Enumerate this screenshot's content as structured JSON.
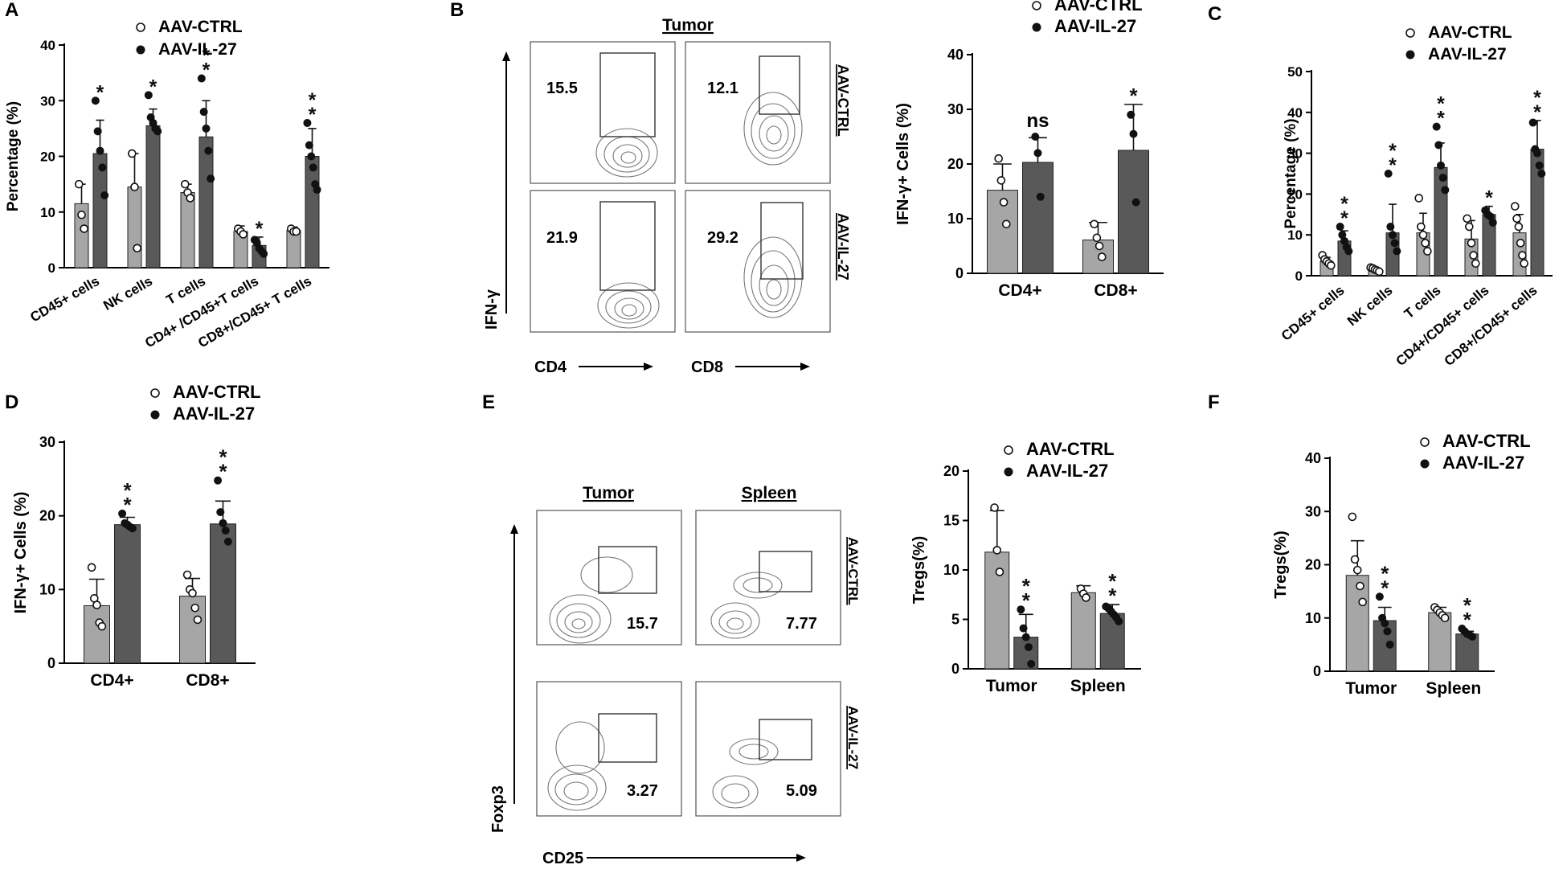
{
  "colors": {
    "ctrl_fill": "#a6a6a6",
    "il27_fill": "#595959",
    "point": "#111111",
    "axis": "#000000",
    "gate": "#333333",
    "contour": "#777777",
    "star": "#111111"
  },
  "chart_data": [
    {
      "id": "A",
      "panel_label": "A",
      "type": "bar",
      "ylabel": "Percentage (%)",
      "ylim": [
        0,
        40
      ],
      "yticks": [
        0,
        10,
        20,
        30,
        40
      ],
      "categories": [
        "CD45+ cells",
        "NK cells",
        "T cells",
        "CD4+ /CD45+T cells",
        "CD8+/CD45+ T cells"
      ],
      "legend": {
        "placement": "top",
        "entries": [
          "AAV-CTRL",
          "AAV-IL-27"
        ]
      },
      "series": [
        {
          "name": "AAV-CTRL",
          "values": [
            11.5,
            14.5,
            13.5,
            6.5,
            6.7
          ],
          "errors": [
            3.5,
            6,
            1.5,
            1,
            0.6
          ],
          "points": [
            [
              15,
              9.5,
              7
            ],
            [
              20.5,
              14.5,
              3.5
            ],
            [
              15,
              13.5,
              12.5
            ],
            [
              7,
              6.5,
              6
            ],
            [
              7,
              6.5,
              6.5
            ]
          ]
        },
        {
          "name": "AAV-IL-27",
          "values": [
            20.5,
            25.5,
            23.5,
            4,
            20
          ],
          "errors": [
            6,
            3,
            6.5,
            1.5,
            5
          ],
          "points": [
            [
              30,
              24.5,
              21,
              18,
              13
            ],
            [
              31,
              27,
              26,
              25,
              24.5
            ],
            [
              34,
              28,
              25,
              21,
              16
            ],
            [
              5,
              4.5,
              3.5,
              3,
              2.5
            ],
            [
              26,
              22,
              20,
              18,
              15,
              14
            ]
          ]
        }
      ],
      "significance": [
        "*",
        "*",
        "**",
        "*",
        "**"
      ]
    },
    {
      "id": "B",
      "panel_label": "B",
      "type": "bar",
      "ylabel": "IFN-γ+ Cells (%)",
      "ylim": [
        0,
        40
      ],
      "yticks": [
        0,
        10,
        20,
        30,
        40
      ],
      "categories": [
        "CD4+",
        "CD8+"
      ],
      "legend": {
        "placement": "top",
        "entries": [
          "AAV-CTRL",
          "AAV-IL-27"
        ]
      },
      "series": [
        {
          "name": "AAV-CTRL",
          "values": [
            15.2,
            6.1
          ],
          "errors": [
            4.8,
            3.2
          ],
          "points": [
            [
              21,
              17,
              13,
              9
            ],
            [
              9,
              6.5,
              5,
              3
            ]
          ]
        },
        {
          "name": "AAV-IL-27",
          "values": [
            20.3,
            22.5
          ],
          "errors": [
            4.5,
            8.4
          ],
          "points": [
            [
              25,
              22,
              14
            ],
            [
              29,
              25.5,
              13
            ]
          ]
        }
      ],
      "significance": [
        "ns",
        "*"
      ]
    },
    {
      "id": "C",
      "panel_label": "C",
      "type": "bar",
      "ylabel": "Percentage (%)",
      "ylim": [
        0,
        50
      ],
      "yticks": [
        0,
        10,
        20,
        30,
        40,
        50
      ],
      "categories": [
        "CD45+ cells",
        "NK cells",
        "T cells",
        "CD4+/CD45+ cells",
        "CD8+/CD45+ cells"
      ],
      "legend": {
        "placement": "top-right",
        "entries": [
          "AAV-CTRL",
          "AAV-IL-27"
        ]
      },
      "series": [
        {
          "name": "AAV-CTRL",
          "values": [
            3.5,
            1.5,
            10.5,
            9,
            10.5
          ],
          "errors": [
            1,
            0.5,
            4.8,
            4.5,
            4.5
          ],
          "points": [
            [
              5,
              4,
              3.5,
              3,
              2.5
            ],
            [
              2,
              1.8,
              1.5,
              1.3,
              1
            ],
            [
              19,
              12,
              10,
              8,
              6
            ],
            [
              14,
              12,
              8,
              5,
              3
            ],
            [
              17,
              14,
              12,
              8,
              5,
              3
            ]
          ]
        },
        {
          "name": "AAV-IL-27",
          "values": [
            8.5,
            10.5,
            26.5,
            15,
            31
          ],
          "errors": [
            2.5,
            7,
            6,
            2,
            7
          ],
          "points": [
            [
              12,
              10,
              8.5,
              7,
              6
            ],
            [
              25,
              12,
              10,
              8,
              6
            ],
            [
              36.5,
              32,
              27,
              24,
              21
            ],
            [
              16,
              15,
              14.5,
              13
            ],
            [
              37.5,
              31,
              30,
              27,
              25
            ]
          ]
        }
      ],
      "significance": [
        "**",
        "**",
        "**",
        "*",
        "**"
      ]
    },
    {
      "id": "D",
      "panel_label": "D",
      "type": "bar",
      "ylabel": "IFN-γ+ Cells (%)",
      "ylim": [
        0,
        30
      ],
      "yticks": [
        0,
        10,
        20,
        30
      ],
      "categories": [
        "CD4+",
        "CD8+"
      ],
      "legend": {
        "placement": "top",
        "entries": [
          "AAV-CTRL",
          "AAV-IL-27"
        ]
      },
      "series": [
        {
          "name": "AAV-CTRL",
          "values": [
            7.8,
            9.1
          ],
          "errors": [
            3.6,
            2.4
          ],
          "points": [
            [
              13,
              8.8,
              7.9,
              5.5,
              5
            ],
            [
              12,
              10,
              9.5,
              7.5,
              5.9
            ]
          ]
        },
        {
          "name": "AAV-IL-27",
          "values": [
            18.8,
            18.9
          ],
          "errors": [
            1.0,
            3.1
          ],
          "points": [
            [
              20.3,
              19,
              18.8,
              18.5,
              18.3
            ],
            [
              24.8,
              20.5,
              19,
              18,
              16.5
            ]
          ]
        }
      ],
      "significance": [
        "**",
        "**"
      ]
    },
    {
      "id": "E",
      "panel_label": "E",
      "type": "bar",
      "ylabel": "Tregs(%)",
      "ylim": [
        0,
        20
      ],
      "yticks": [
        0,
        5,
        10,
        15,
        20
      ],
      "categories": [
        "Tumor",
        "Spleen"
      ],
      "legend": {
        "placement": "top-right",
        "entries": [
          "AAV-CTRL",
          "AAV-IL-27"
        ]
      },
      "series": [
        {
          "name": "AAV-CTRL",
          "values": [
            11.8,
            7.7
          ],
          "errors": [
            4.2,
            0.7
          ],
          "points": [
            [
              16.3,
              12,
              9.8
            ],
            [
              8.1,
              7.6,
              7.2
            ]
          ]
        },
        {
          "name": "AAV-IL-27",
          "values": [
            3.2,
            5.6
          ],
          "errors": [
            2.3,
            0.9
          ],
          "points": [
            [
              6,
              4.1,
              3.2,
              2.2,
              0.5
            ],
            [
              6.3,
              6.1,
              5.8,
              5.5,
              5.2,
              4.8
            ]
          ]
        }
      ],
      "significance": [
        "**",
        "**"
      ]
    },
    {
      "id": "F",
      "panel_label": "F",
      "type": "bar",
      "ylabel": "Tregs(%)",
      "ylim": [
        0,
        40
      ],
      "yticks": [
        0,
        10,
        20,
        30,
        40
      ],
      "categories": [
        "Tumor",
        "Spleen"
      ],
      "legend": {
        "placement": "top-right",
        "entries": [
          "AAV-CTRL",
          "AAV-IL-27"
        ]
      },
      "series": [
        {
          "name": "AAV-CTRL",
          "values": [
            18,
            11
          ],
          "errors": [
            6.5,
            1
          ],
          "points": [
            [
              29,
              21,
              19,
              16,
              13
            ],
            [
              12,
              11.5,
              11,
              10.5,
              10
            ]
          ]
        },
        {
          "name": "AAV-IL-27",
          "values": [
            9.5,
            7
          ],
          "errors": [
            2.5,
            0.5
          ],
          "points": [
            [
              14,
              10,
              9,
              7.5,
              5
            ],
            [
              8,
              7.5,
              7,
              6.8,
              6.5
            ]
          ]
        }
      ],
      "significance": [
        "**",
        "**"
      ]
    }
  ],
  "flow_panels": [
    {
      "id": "B",
      "header": "Tumor",
      "y_axis": "IFN-γ",
      "x_axes": [
        "CD4",
        "CD8"
      ],
      "row_labels": [
        "AAV-CTRL",
        "AAV-IL-27"
      ],
      "values": [
        [
          "15.5",
          "12.1"
        ],
        [
          "21.9",
          "29.2"
        ]
      ]
    },
    {
      "id": "E",
      "headers": [
        "Tumor",
        "Spleen"
      ],
      "y_axis": "Foxp3",
      "x_axis": "CD25",
      "row_labels": [
        "AAV-CTRL",
        "AAV-IL-27"
      ],
      "values": [
        [
          "15.7",
          "7.77"
        ],
        [
          "3.27",
          "5.09"
        ]
      ]
    }
  ]
}
